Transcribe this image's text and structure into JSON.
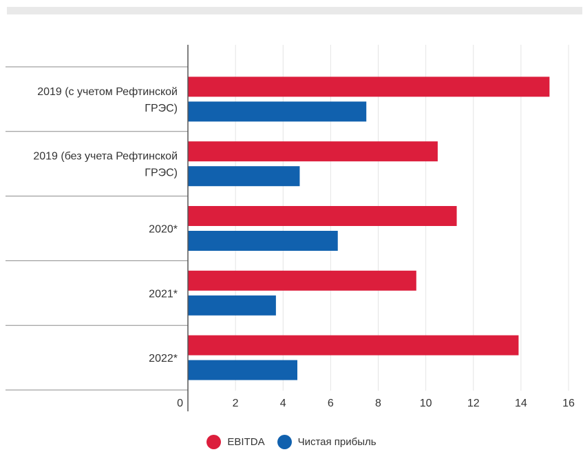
{
  "chart_data": {
    "type": "bar",
    "orientation": "horizontal",
    "title": "",
    "xlabel": "",
    "ylabel": "",
    "categories_lines": [
      [
        "2019 (с учетом Рефтинской",
        "ГРЭС)"
      ],
      [
        "2019 (без учета Рефтинской",
        "ГРЭС)"
      ],
      [
        "2020*"
      ],
      [
        "2021*"
      ],
      [
        "2022*"
      ]
    ],
    "series": [
      {
        "name": "EBITDA",
        "color": "#dc1e3c",
        "values": [
          15.2,
          10.5,
          11.3,
          9.6,
          13.9
        ]
      },
      {
        "name": "Чистая прибыль",
        "color": "#1161ae",
        "values": [
          7.5,
          4.7,
          6.3,
          3.7,
          4.6
        ]
      }
    ],
    "xlim": [
      0,
      16
    ],
    "xticks": [
      "0",
      "2",
      "4",
      "6",
      "8",
      "10",
      "12",
      "14",
      "16"
    ],
    "grid": true,
    "legend": "bottom-center"
  }
}
